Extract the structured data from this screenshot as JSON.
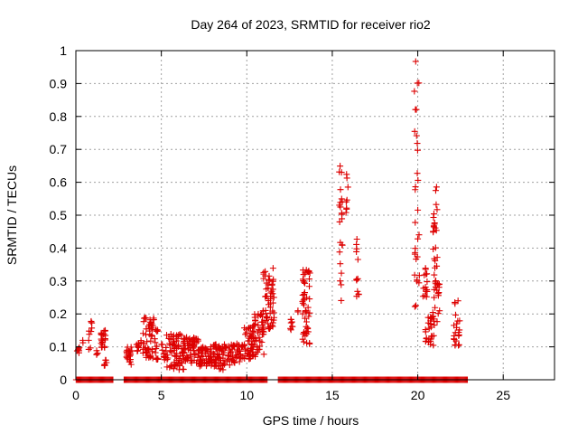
{
  "chart_data": {
    "type": "scatter",
    "title": "Day 264 of 2023, SRMTID for receiver rio2",
    "xlabel": "GPS time / hours",
    "ylabel": "SRMTID / TECUs",
    "xlim": [
      0,
      28
    ],
    "ylim": [
      0,
      1
    ],
    "grid": true,
    "marker": "+",
    "marker_color": "#dd0000",
    "grid_color": "#a0a0a0",
    "xticks": [
      0,
      5,
      10,
      15,
      20,
      25
    ],
    "xtick_labels": [
      "0",
      "5",
      "10",
      "15",
      "20",
      "25"
    ],
    "yticks": [
      0,
      0.1,
      0.2,
      0.3,
      0.4,
      0.5,
      0.6,
      0.7,
      0.8,
      0.9,
      1
    ],
    "ytick_labels": [
      "0",
      "0.1",
      "0.2",
      "0.3",
      "0.4",
      "0.5",
      "0.6",
      "0.7",
      "0.8",
      "0.9",
      "1"
    ],
    "clusters": [
      {
        "x0": 0.05,
        "x1": 0.25,
        "ylo": 0.08,
        "yhi": 0.1,
        "n": 6
      },
      {
        "x0": 0.35,
        "x1": 0.45,
        "ylo": 0.11,
        "yhi": 0.13,
        "n": 2
      },
      {
        "x0": 0.75,
        "x1": 0.95,
        "ylo": 0.09,
        "yhi": 0.18,
        "n": 10
      },
      {
        "x0": 1.15,
        "x1": 1.3,
        "ylo": 0.07,
        "yhi": 0.09,
        "n": 4
      },
      {
        "x0": 1.45,
        "x1": 1.75,
        "ylo": 0.09,
        "yhi": 0.15,
        "n": 20
      },
      {
        "x0": 1.65,
        "x1": 1.8,
        "ylo": 0.03,
        "yhi": 0.06,
        "n": 6
      },
      {
        "x0": 2.95,
        "x1": 3.3,
        "ylo": 0.04,
        "yhi": 0.1,
        "n": 22
      },
      {
        "x0": 3.55,
        "x1": 3.85,
        "ylo": 0.08,
        "yhi": 0.13,
        "n": 10
      },
      {
        "x0": 3.9,
        "x1": 4.8,
        "ylo": 0.06,
        "yhi": 0.19,
        "n": 60
      },
      {
        "x0": 5.0,
        "x1": 5.3,
        "ylo": 0.06,
        "yhi": 0.11,
        "n": 12
      },
      {
        "x0": 5.3,
        "x1": 6.3,
        "ylo": 0.03,
        "yhi": 0.14,
        "n": 70
      },
      {
        "x0": 6.3,
        "x1": 7.2,
        "ylo": 0.05,
        "yhi": 0.13,
        "n": 60
      },
      {
        "x0": 7.2,
        "x1": 8.0,
        "ylo": 0.04,
        "yhi": 0.1,
        "n": 50
      },
      {
        "x0": 8.0,
        "x1": 9.0,
        "ylo": 0.03,
        "yhi": 0.11,
        "n": 60
      },
      {
        "x0": 9.0,
        "x1": 9.8,
        "ylo": 0.05,
        "yhi": 0.11,
        "n": 40
      },
      {
        "x0": 9.8,
        "x1": 10.4,
        "ylo": 0.06,
        "yhi": 0.16,
        "n": 40
      },
      {
        "x0": 10.3,
        "x1": 11.0,
        "ylo": 0.07,
        "yhi": 0.2,
        "n": 50
      },
      {
        "x0": 10.9,
        "x1": 11.6,
        "ylo": 0.15,
        "yhi": 0.34,
        "n": 55
      },
      {
        "x0": 12.55,
        "x1": 12.75,
        "ylo": 0.14,
        "yhi": 0.19,
        "n": 8
      },
      {
        "x0": 12.95,
        "x1": 13.05,
        "ylo": 0.2,
        "yhi": 0.21,
        "n": 2
      },
      {
        "x0": 13.25,
        "x1": 13.7,
        "ylo": 0.1,
        "yhi": 0.34,
        "n": 50
      },
      {
        "x0": 15.4,
        "x1": 15.6,
        "ylo": 0.24,
        "yhi": 0.7,
        "n": 22
      },
      {
        "x0": 15.8,
        "x1": 15.95,
        "ylo": 0.42,
        "yhi": 0.66,
        "n": 8
      },
      {
        "x0": 16.4,
        "x1": 16.6,
        "ylo": 0.21,
        "yhi": 0.44,
        "n": 12
      },
      {
        "x0": 19.8,
        "x1": 20.1,
        "ylo": 0.22,
        "yhi": 0.97,
        "n": 30
      },
      {
        "x0": 20.3,
        "x1": 20.55,
        "ylo": 0.25,
        "yhi": 0.34,
        "n": 14
      },
      {
        "x0": 20.45,
        "x1": 20.95,
        "ylo": 0.1,
        "yhi": 0.21,
        "n": 30
      },
      {
        "x0": 20.9,
        "x1": 21.15,
        "ylo": 0.15,
        "yhi": 0.61,
        "n": 30
      },
      {
        "x0": 21.0,
        "x1": 21.3,
        "ylo": 0.2,
        "yhi": 0.3,
        "n": 14
      },
      {
        "x0": 22.1,
        "x1": 22.45,
        "ylo": 0.1,
        "yhi": 0.24,
        "n": 22
      }
    ],
    "zero_band": {
      "x_from": 0,
      "x_to": 22.9,
      "y": 0,
      "gaps": [
        [
          2.2,
          2.8
        ],
        [
          11.2,
          11.8
        ]
      ]
    }
  }
}
